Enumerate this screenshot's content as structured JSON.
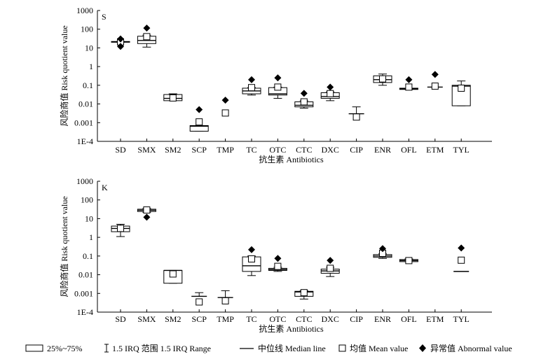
{
  "chart_data": [
    {
      "type": "boxplot",
      "panel_label": "S",
      "ylabel": "风险商值 Risk quotient value",
      "xlabel": "抗生素 Antibiotics",
      "yscale": "log",
      "ylim": [
        0.0001,
        1000
      ],
      "yticks": [
        "1000",
        "100",
        "10",
        "1",
        "0.1",
        "0.01",
        "0.001",
        "1E-4"
      ],
      "categories": [
        "SD",
        "SMX",
        "SM2",
        "SCP",
        "TMP",
        "TC",
        "OTC",
        "CTC",
        "DXC",
        "CIP",
        "ENR",
        "OFL",
        "ETM",
        "TYL"
      ],
      "boxes": [
        {
          "name": "SD",
          "q1": 20,
          "q3": 22,
          "median": 21,
          "wlow": 20,
          "whigh": 22,
          "mean": 21,
          "outliers": [
            30,
            12
          ]
        },
        {
          "name": "SMX",
          "q1": 17,
          "q3": 42,
          "median": 25,
          "wlow": 11,
          "whigh": 48,
          "mean": 40,
          "outliers": [
            115
          ]
        },
        {
          "name": "SM2",
          "q1": 0.015,
          "q3": 0.032,
          "median": 0.02,
          "wlow": 0.015,
          "whigh": 0.035,
          "mean": 0.021,
          "outliers": []
        },
        {
          "name": "SCP",
          "q1": 0.00035,
          "q3": 0.0007,
          "median": 0.00065,
          "wlow": 0.00035,
          "whigh": 0.0007,
          "mean": 0.0011,
          "outliers": [
            0.005
          ]
        },
        {
          "name": "TMP",
          "q1": null,
          "q3": null,
          "median": null,
          "wlow": null,
          "whigh": null,
          "mean": 0.0033,
          "outliers": [
            0.016
          ]
        },
        {
          "name": "TC",
          "q1": 0.035,
          "q3": 0.07,
          "median": 0.05,
          "wlow": 0.03,
          "whigh": 0.075,
          "mean": 0.075,
          "outliers": [
            0.2
          ]
        },
        {
          "name": "OTC",
          "q1": 0.03,
          "q3": 0.075,
          "median": 0.035,
          "wlow": 0.02,
          "whigh": 0.08,
          "mean": 0.08,
          "outliers": [
            0.25
          ]
        },
        {
          "name": "CTC",
          "q1": 0.007,
          "q3": 0.013,
          "median": 0.0085,
          "wlow": 0.006,
          "whigh": 0.015,
          "mean": 0.013,
          "outliers": [
            0.037
          ]
        },
        {
          "name": "DXC",
          "q1": 0.02,
          "q3": 0.04,
          "median": 0.025,
          "wlow": 0.015,
          "whigh": 0.045,
          "mean": 0.036,
          "outliers": [
            0.08
          ]
        },
        {
          "name": "CIP",
          "q1": null,
          "q3": null,
          "median": 0.003,
          "wlow": 0.003,
          "whigh": 0.007,
          "mean": 0.002,
          "outliers": []
        },
        {
          "name": "ENR",
          "q1": 0.14,
          "q3": 0.32,
          "median": 0.2,
          "wlow": 0.1,
          "whigh": 0.4,
          "mean": 0.22,
          "outliers": []
        },
        {
          "name": "OFL",
          "q1": 0.06,
          "q3": 0.07,
          "median": 0.065,
          "wlow": 0.06,
          "whigh": 0.07,
          "mean": 0.08,
          "outliers": [
            0.2
          ]
        },
        {
          "name": "ETM",
          "q1": null,
          "q3": null,
          "median": 0.08,
          "wlow": 0.08,
          "whigh": 0.08,
          "mean": 0.09,
          "outliers": [
            0.38
          ]
        },
        {
          "name": "TYL",
          "q1": 0.008,
          "q3": 0.1,
          "median": 0.09,
          "wlow": 0.008,
          "whigh": 0.17,
          "mean": 0.07,
          "outliers": []
        }
      ]
    },
    {
      "type": "boxplot",
      "panel_label": "K",
      "ylabel": "风险商值 Risk quotient value",
      "xlabel": "抗生素 Antibiotics",
      "yscale": "log",
      "ylim": [
        0.0001,
        1000
      ],
      "yticks": [
        "1000",
        "100",
        "10",
        "1",
        "0.1",
        "0.01",
        "0.001",
        "1E-4"
      ],
      "categories": [
        "SD",
        "SMX",
        "SM2",
        "SCP",
        "TMP",
        "TC",
        "OTC",
        "CTC",
        "DXC",
        "CIP",
        "ENR",
        "OFL",
        "ETM",
        "TYL"
      ],
      "boxes": [
        {
          "name": "SD",
          "q1": 2,
          "q3": 4,
          "median": 3,
          "wlow": 1.1,
          "whigh": 5,
          "mean": 3,
          "outliers": []
        },
        {
          "name": "SMX",
          "q1": 24,
          "q3": 32,
          "median": 28,
          "wlow": 22,
          "whigh": 35,
          "mean": 29,
          "outliers": [
            12
          ]
        },
        {
          "name": "SM2",
          "q1": 0.0035,
          "q3": 0.017,
          "median": 0.017,
          "wlow": 0.0035,
          "whigh": 0.017,
          "mean": 0.011,
          "outliers": []
        },
        {
          "name": "SCP",
          "q1": null,
          "q3": null,
          "median": 0.0007,
          "wlow": 0.0007,
          "whigh": 0.0011,
          "mean": 0.00035,
          "outliers": []
        },
        {
          "name": "TMP",
          "q1": null,
          "q3": null,
          "median": 0.0006,
          "wlow": 0.0006,
          "whigh": 0.0014,
          "mean": 0.0004,
          "outliers": []
        },
        {
          "name": "TC",
          "q1": 0.015,
          "q3": 0.09,
          "median": 0.03,
          "wlow": 0.009,
          "whigh": 0.1,
          "mean": 0.07,
          "outliers": [
            0.22
          ]
        },
        {
          "name": "OTC",
          "q1": 0.017,
          "q3": 0.022,
          "median": 0.019,
          "wlow": 0.015,
          "whigh": 0.025,
          "mean": 0.028,
          "outliers": [
            0.075
          ]
        },
        {
          "name": "CTC",
          "q1": 0.0007,
          "q3": 0.0013,
          "median": 0.0012,
          "wlow": 0.0005,
          "whigh": 0.0014,
          "mean": 0.0011,
          "outliers": []
        },
        {
          "name": "DXC",
          "q1": 0.012,
          "q3": 0.02,
          "median": 0.016,
          "wlow": 0.008,
          "whigh": 0.025,
          "mean": 0.022,
          "outliers": [
            0.058
          ]
        },
        {
          "name": "CIP",
          "q1": null,
          "q3": null,
          "median": null,
          "wlow": null,
          "whigh": null,
          "mean": null,
          "outliers": []
        },
        {
          "name": "ENR",
          "q1": 0.085,
          "q3": 0.12,
          "median": 0.1,
          "wlow": 0.075,
          "whigh": 0.13,
          "mean": 0.14,
          "outliers": [
            0.25
          ]
        },
        {
          "name": "OFL",
          "q1": 0.05,
          "q3": 0.065,
          "median": 0.057,
          "wlow": 0.05,
          "whigh": 0.07,
          "mean": 0.057,
          "outliers": []
        },
        {
          "name": "ETM",
          "q1": null,
          "q3": null,
          "median": null,
          "wlow": null,
          "whigh": null,
          "mean": null,
          "outliers": []
        },
        {
          "name": "TYL",
          "q1": null,
          "q3": null,
          "median": 0.015,
          "wlow": 0.015,
          "whigh": 0.015,
          "mean": 0.06,
          "outliers": [
            0.27
          ]
        }
      ]
    }
  ],
  "legend": {
    "box": "25%~75%",
    "range": "1.5 IRQ 范围 1.5 IRQ Range",
    "median": "中位线 Median line",
    "mean": "均值 Mean value",
    "outlier": "异常值 Abnormal value"
  }
}
